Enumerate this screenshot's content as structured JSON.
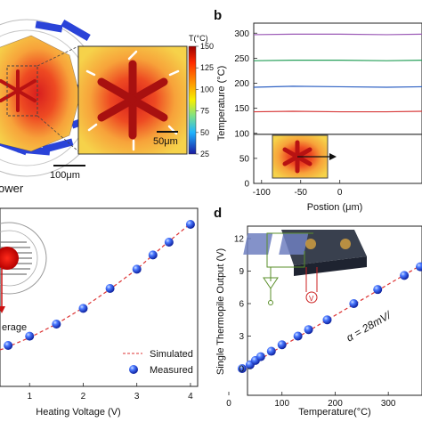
{
  "panel_labels": {
    "b": "b",
    "d": "d"
  },
  "panel_a": {
    "scalebar_main": "100μm",
    "scalebar_inset": "50μm",
    "partial_label": "ower",
    "colorbar": {
      "title": "T(°C)",
      "ticks": [
        "150",
        "125",
        "100",
        "75",
        "50",
        "25"
      ],
      "range": [
        25,
        150
      ]
    }
  },
  "panel_c": {
    "partial_label": "erage",
    "legend": {
      "simulated": "Simulated",
      "measured": "Measured"
    }
  },
  "chart_data": [
    {
      "panel": "b",
      "type": "line",
      "xlabel": "Postion (μm)",
      "ylabel": "Temperature (°C)",
      "xlim": [
        -110,
        105
      ],
      "ylim": [
        0,
        320
      ],
      "xticks": [
        "-100",
        "-50",
        "0"
      ],
      "yticks": [
        "0",
        "50",
        "100",
        "150",
        "200",
        "250",
        "300"
      ],
      "series": [
        {
          "color": "#9b59b6",
          "x": [
            -110,
            -60,
            0,
            60,
            105
          ],
          "values": [
            297,
            298,
            298,
            297,
            298
          ]
        },
        {
          "color": "#27a05a",
          "x": [
            -110,
            -60,
            0,
            60,
            105
          ],
          "values": [
            245,
            246,
            246,
            245,
            246
          ]
        },
        {
          "color": "#2f62c4",
          "x": [
            -110,
            -60,
            0,
            60,
            105
          ],
          "values": [
            192,
            194,
            193,
            192,
            193
          ]
        },
        {
          "color": "#d83b3b",
          "x": [
            -110,
            -60,
            0,
            60,
            105
          ],
          "values": [
            143,
            144,
            143,
            143,
            144
          ]
        },
        {
          "color": "#3a3a3a",
          "x": [
            -110,
            -60,
            0,
            60,
            105
          ],
          "values": [
            98,
            98,
            98,
            98,
            98
          ]
        }
      ]
    },
    {
      "panel": "c",
      "type": "scatter",
      "xlabel": "Heating Voltage (V)",
      "xlim": [
        0,
        4.3
      ],
      "xticks": [
        "1",
        "2",
        "3",
        "4"
      ],
      "measured": {
        "name": "Measured",
        "x": [
          0.0,
          0.3,
          0.6,
          1.0,
          1.5,
          2.0,
          2.5,
          3.0,
          3.3,
          3.6,
          4.0
        ],
        "y": [
          0.4,
          1.0,
          2.0,
          3.3,
          5.0,
          7.2,
          10.0,
          12.7,
          14.7,
          16.5,
          19.0
        ]
      },
      "simulated": {
        "name": "Simulated",
        "x": [
          0.0,
          0.5,
          1.0,
          1.5,
          2.0,
          2.5,
          3.0,
          3.5,
          4.0
        ],
        "y": [
          0.4,
          1.5,
          3.1,
          5.0,
          7.3,
          9.9,
          12.7,
          16.0,
          19.1
        ]
      }
    },
    {
      "panel": "d",
      "type": "scatter",
      "xlabel": "Temperature(°C)",
      "ylabel": "Single Thermopile Output (V)",
      "xlim": [
        0,
        360
      ],
      "ylim": [
        0,
        12
      ],
      "xticks": [
        "0",
        "100",
        "200",
        "300"
      ],
      "yticks": [
        "0",
        "3",
        "6",
        "9",
        "12"
      ],
      "annotation": "α = 28mV/",
      "inset_labels": [
        "V"
      ],
      "measured": {
        "x": [
          25,
          40,
          50,
          60,
          80,
          100,
          130,
          150,
          185,
          235,
          280,
          330,
          360
        ],
        "y": [
          0.0,
          0.35,
          0.75,
          1.1,
          1.6,
          2.2,
          3.0,
          3.6,
          4.5,
          6.0,
          7.3,
          8.6,
          9.4
        ]
      },
      "fit": {
        "x": [
          25,
          360
        ],
        "y": [
          -0.1,
          9.5
        ]
      }
    }
  ]
}
